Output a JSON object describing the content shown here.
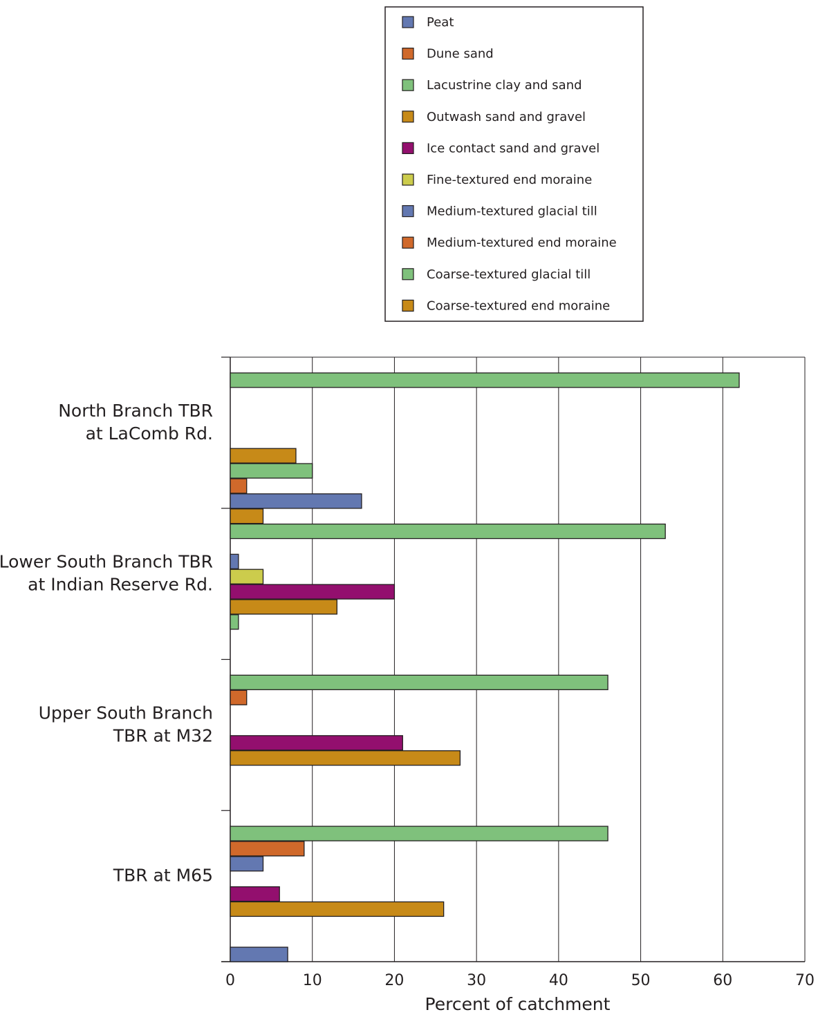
{
  "chart_data": {
    "type": "bar",
    "orientation": "horizontal",
    "xlabel": "Percent of catchment",
    "xlim": [
      0,
      70
    ],
    "xticks": [
      0,
      10,
      20,
      30,
      40,
      50,
      60,
      70
    ],
    "grid": true,
    "legend_position": "top-center",
    "legend": [
      {
        "name": "Peat",
        "color": "#6378b1"
      },
      {
        "name": "Dune sand",
        "color": "#d0692b"
      },
      {
        "name": "Lacustrine clay and sand",
        "color": "#7fc17c"
      },
      {
        "name": "Outwash sand and gravel",
        "color": "#c78a18"
      },
      {
        "name": "Ice contact sand and gravel",
        "color": "#930f6e"
      },
      {
        "name": "Fine-textured end moraine",
        "color": "#cccc4c"
      },
      {
        "name": "Medium-textured glacial till",
        "color": "#6378b1"
      },
      {
        "name": "Medium-textured end moraine",
        "color": "#d0692b"
      },
      {
        "name": "Coarse-textured glacial till",
        "color": "#7fc17c"
      },
      {
        "name": "Coarse-textured end moraine",
        "color": "#c78a18"
      }
    ],
    "categories": [
      {
        "lines": [
          "North Branch TBR",
          "at LaComb Rd."
        ]
      },
      {
        "lines": [
          "Lower South Branch TBR",
          "at Indian Reserve Rd."
        ]
      },
      {
        "lines": [
          "Upper South Branch",
          "TBR at M32"
        ]
      },
      {
        "lines": [
          "TBR at M65"
        ]
      }
    ],
    "series_order_top_to_bottom": [
      "Coarse-textured end moraine",
      "Coarse-textured glacial till",
      "Medium-textured end moraine",
      "Medium-textured glacial till",
      "Fine-textured end moraine",
      "Ice contact sand and gravel",
      "Outwash sand and gravel",
      "Lacustrine clay and sand",
      "Dune sand",
      "Peat"
    ],
    "values": {
      "North Branch TBR at LaComb Rd.": {
        "Coarse-textured end moraine": 0,
        "Coarse-textured glacial till": 62,
        "Medium-textured end moraine": 0,
        "Medium-textured glacial till": 0,
        "Fine-textured end moraine": 0,
        "Ice contact sand and gravel": 0,
        "Outwash sand and gravel": 8,
        "Lacustrine clay and sand": 10,
        "Dune sand": 2,
        "Peat": 16
      },
      "Lower South Branch TBR at Indian Reserve Rd.": {
        "Coarse-textured end moraine": 4,
        "Coarse-textured glacial till": 53,
        "Medium-textured end moraine": 0,
        "Medium-textured glacial till": 1,
        "Fine-textured end moraine": 4,
        "Ice contact sand and gravel": 20,
        "Outwash sand and gravel": 13,
        "Lacustrine clay and sand": 1,
        "Dune sand": 0,
        "Peat": 0
      },
      "Upper South Branch TBR at M32": {
        "Coarse-textured end moraine": 0,
        "Coarse-textured glacial till": 46,
        "Medium-textured end moraine": 2,
        "Medium-textured glacial till": 0,
        "Fine-textured end moraine": 0,
        "Ice contact sand and gravel": 21,
        "Outwash sand and gravel": 28,
        "Lacustrine clay and sand": 0,
        "Dune sand": 0,
        "Peat": 0
      },
      "TBR at M65": {
        "Coarse-textured end moraine": 0,
        "Coarse-textured glacial till": 46,
        "Medium-textured end moraine": 9,
        "Medium-textured glacial till": 4,
        "Fine-textured end moraine": 0,
        "Ice contact sand and gravel": 6,
        "Outwash sand and gravel": 26,
        "Lacustrine clay and sand": 0,
        "Dune sand": 0,
        "Peat": 7
      }
    }
  }
}
